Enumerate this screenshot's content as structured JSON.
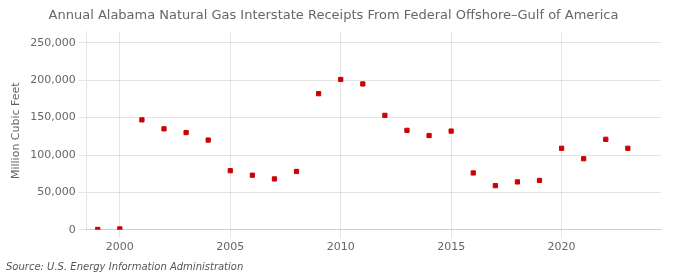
{
  "chart_data": {
    "type": "scatter",
    "title": "Annual Alabama Natural Gas Interstate Receipts From Federal Offshore–Gulf of America",
    "ylabel": "Million Cubic Feet",
    "annotation": "Source: U.S. Energy Information Administration",
    "x": [
      1999,
      2000,
      2001,
      2002,
      2003,
      2004,
      2005,
      2006,
      2007,
      2008,
      2009,
      2010,
      2011,
      2012,
      2013,
      2014,
      2015,
      2016,
      2017,
      2018,
      2019,
      2020,
      2021,
      2022,
      2023
    ],
    "values": [
      500,
      1200,
      147000,
      135000,
      130000,
      120000,
      79000,
      73000,
      68000,
      78000,
      182000,
      201000,
      195000,
      153000,
      133000,
      126000,
      132000,
      76000,
      59000,
      64000,
      66000,
      109000,
      95000,
      121000,
      109000
    ],
    "color": "#cc0000",
    "marker": "square",
    "xlim": [
      1998.5,
      2024.5
    ],
    "xticks": [
      2000,
      2005,
      2010,
      2015,
      2020
    ],
    "ylim": [
      0,
      265000
    ],
    "yticks": [
      0,
      {
        "value": 50000,
        "label": "50,000"
      },
      {
        "value": 100000,
        "label": "100,000"
      },
      {
        "value": 150000,
        "label": "150,000"
      },
      {
        "value": 200000,
        "label": "200,000"
      },
      {
        "value": 250000,
        "label": "250,000"
      }
    ],
    "grid": true
  }
}
